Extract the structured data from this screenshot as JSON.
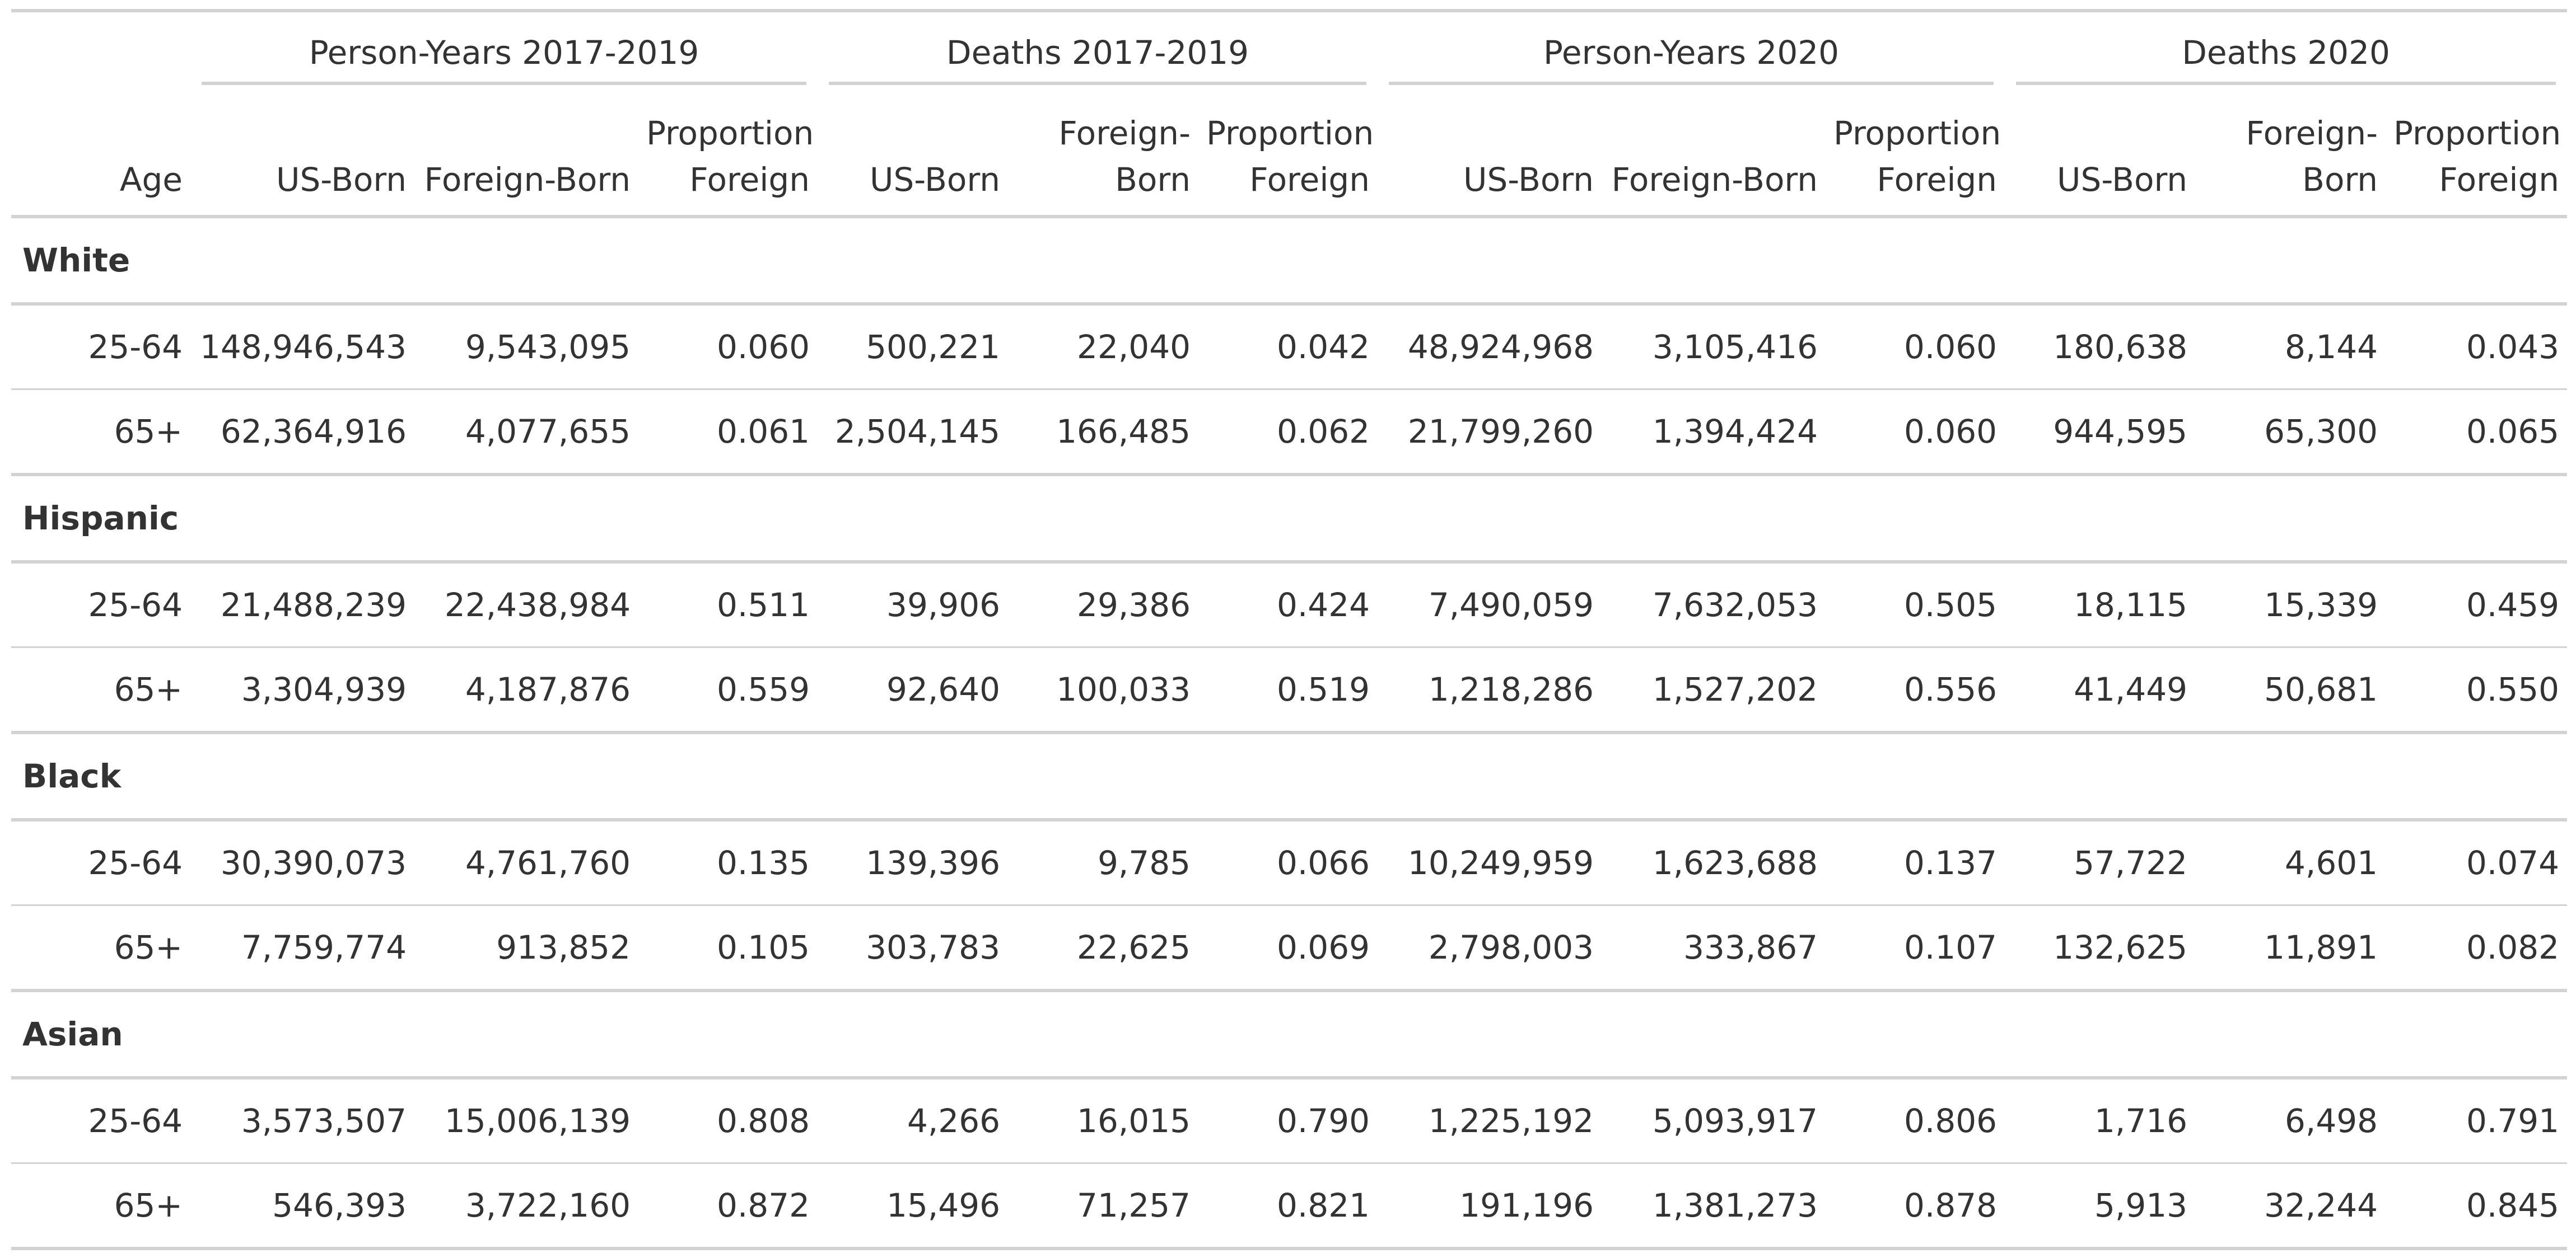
{
  "table": {
    "spanners": [
      "Person-Years 2017-2019",
      "Deaths 2017-2019",
      "Person-Years 2020",
      "Deaths 2020"
    ],
    "columns": [
      "Age",
      "US-Born",
      "Foreign-Born",
      "Proportion Foreign",
      "US-Born",
      "Foreign-Born",
      "Proportion Foreign",
      "US-Born",
      "Foreign-Born",
      "Proportion Foreign",
      "US-Born",
      "Foreign-Born",
      "Proportion Foreign"
    ],
    "groups": [
      {
        "name": "White",
        "rows": [
          [
            "25-64",
            "148,946,543",
            "9,543,095",
            "0.060",
            "500,221",
            "22,040",
            "0.042",
            "48,924,968",
            "3,105,416",
            "0.060",
            "180,638",
            "8,144",
            "0.043"
          ],
          [
            "65+",
            "62,364,916",
            "4,077,655",
            "0.061",
            "2,504,145",
            "166,485",
            "0.062",
            "21,799,260",
            "1,394,424",
            "0.060",
            "944,595",
            "65,300",
            "0.065"
          ]
        ]
      },
      {
        "name": "Hispanic",
        "rows": [
          [
            "25-64",
            "21,488,239",
            "22,438,984",
            "0.511",
            "39,906",
            "29,386",
            "0.424",
            "7,490,059",
            "7,632,053",
            "0.505",
            "18,115",
            "15,339",
            "0.459"
          ],
          [
            "65+",
            "3,304,939",
            "4,187,876",
            "0.559",
            "92,640",
            "100,033",
            "0.519",
            "1,218,286",
            "1,527,202",
            "0.556",
            "41,449",
            "50,681",
            "0.550"
          ]
        ]
      },
      {
        "name": "Black",
        "rows": [
          [
            "25-64",
            "30,390,073",
            "4,761,760",
            "0.135",
            "139,396",
            "9,785",
            "0.066",
            "10,249,959",
            "1,623,688",
            "0.137",
            "57,722",
            "4,601",
            "0.074"
          ],
          [
            "65+",
            "7,759,774",
            "913,852",
            "0.105",
            "303,783",
            "22,625",
            "0.069",
            "2,798,003",
            "333,867",
            "0.107",
            "132,625",
            "11,891",
            "0.082"
          ]
        ]
      },
      {
        "name": "Asian",
        "rows": [
          [
            "25-64",
            "3,573,507",
            "15,006,139",
            "0.808",
            "4,266",
            "16,015",
            "0.790",
            "1,225,192",
            "5,093,917",
            "0.806",
            "1,716",
            "6,498",
            "0.791"
          ],
          [
            "65+",
            "546,393",
            "3,722,160",
            "0.872",
            "15,496",
            "71,257",
            "0.821",
            "191,196",
            "1,381,273",
            "0.878",
            "5,913",
            "32,244",
            "0.845"
          ]
        ]
      }
    ]
  }
}
